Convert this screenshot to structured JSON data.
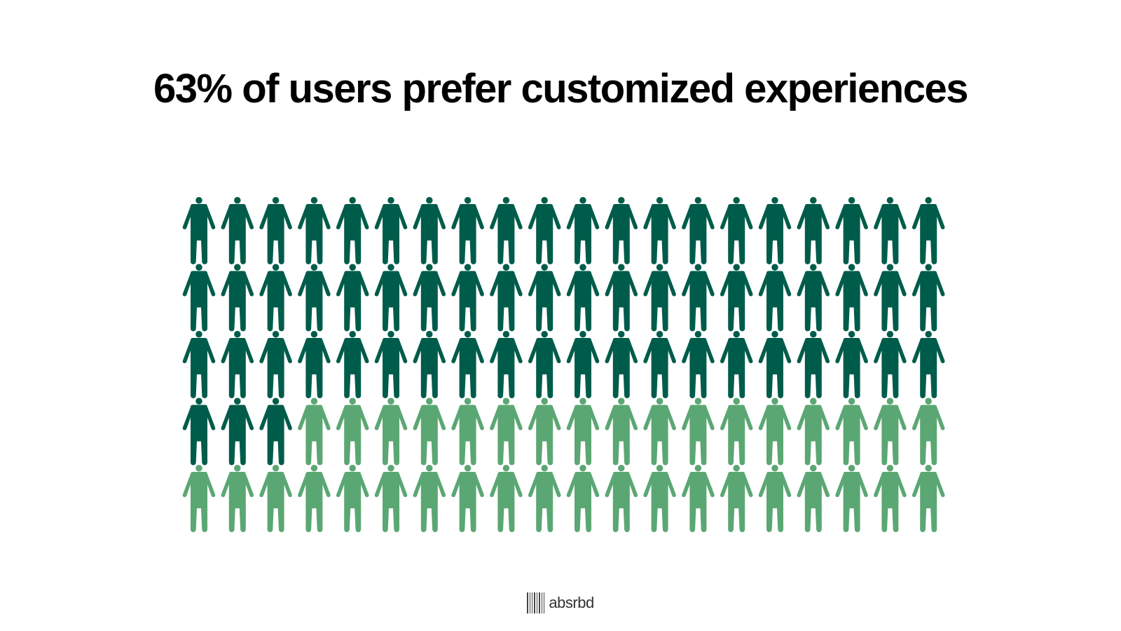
{
  "title": "63% of users prefer customized experiences",
  "chart_data": {
    "type": "pictogram",
    "title": "63% of users prefer customized experiences",
    "total_icons": 100,
    "highlighted_icons": 63,
    "rows": 5,
    "columns": 20,
    "icon": "person-icon",
    "colors": {
      "highlighted": "#005C4A",
      "remainder": "#5BA773"
    }
  },
  "footer": {
    "logo_text": "absrbd",
    "logo_icon": "barcode-icon"
  }
}
